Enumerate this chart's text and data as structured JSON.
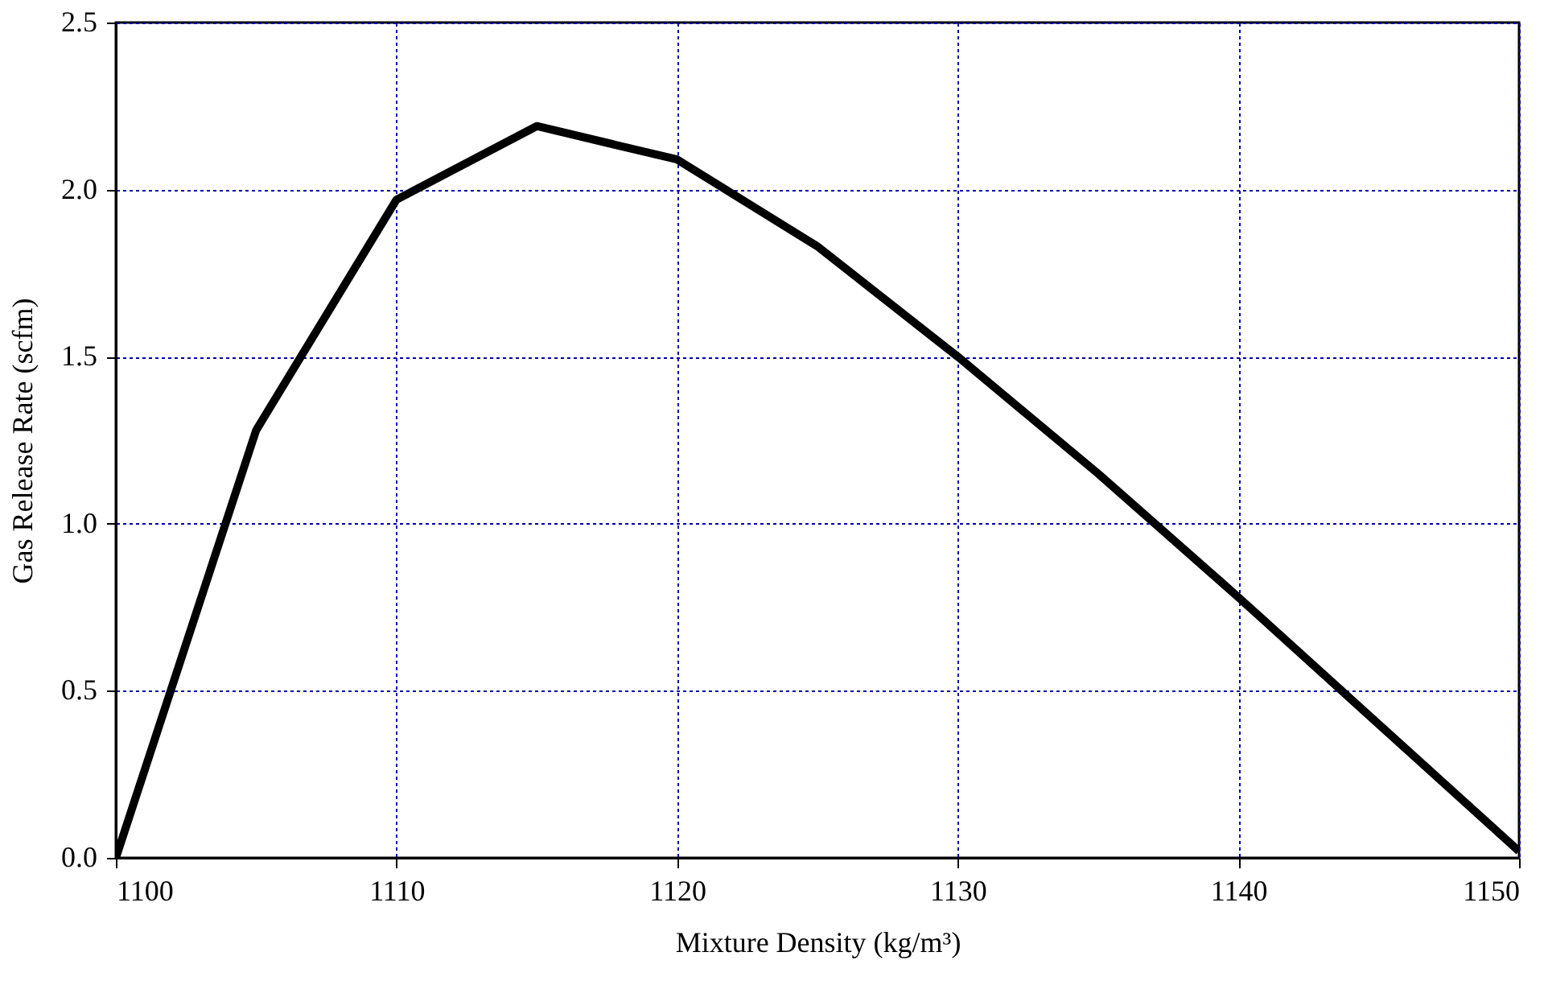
{
  "chart_data": {
    "type": "line",
    "x": [
      1100,
      1105,
      1110,
      1115,
      1120,
      1125,
      1130,
      1135,
      1140,
      1145,
      1150
    ],
    "series": [
      {
        "color": "#000000",
        "values": [
          0.0,
          1.28,
          1.97,
          2.19,
          2.09,
          1.83,
          1.5,
          1.15,
          0.78,
          0.4,
          0.02
        ]
      }
    ],
    "xlabel": "Mixture Density (kg/m³)",
    "ylabel": "Gas Release Rate  (scfm)",
    "xlim": [
      1100,
      1150
    ],
    "xticks": [
      1100,
      1110,
      1120,
      1130,
      1140,
      1150
    ],
    "ylim": [
      0,
      2.5
    ],
    "yticks": [
      {
        "value": 0,
        "label": "0.0"
      },
      {
        "value": 0.5,
        "label": "0.5"
      },
      {
        "value": 1,
        "label": "1.0"
      },
      {
        "value": 1.5,
        "label": "1.5"
      },
      {
        "value": 2,
        "label": "2.0"
      },
      {
        "value": 2.5,
        "label": "2.5"
      }
    ],
    "grid": true,
    "marker": "none",
    "line_style": "solid"
  }
}
